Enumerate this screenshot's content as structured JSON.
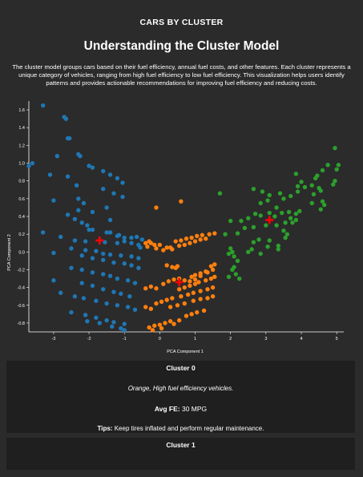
{
  "header": {
    "page_title": "CARS BY CLUSTER",
    "section_title": "Understanding the Cluster Model",
    "intro": "The cluster model groups cars based on their fuel efficiency, annual fuel costs, and other features. Each cluster represents a unique category of vehicles, ranging from high fuel efficiency to low fuel efficiency. This visualization helps users identify patterns and provides actionable recommendations for improving fuel efficiency and reducing costs."
  },
  "chart_data": {
    "type": "scatter",
    "title": "",
    "xlabel": "PCA Component 1",
    "ylabel": "PCA Component 2",
    "xlim": [
      -3.7,
      5.2
    ],
    "ylim": [
      -0.9,
      1.7
    ],
    "xticks": [
      -3,
      -2,
      -1,
      0,
      1,
      2,
      3,
      4,
      5
    ],
    "yticks": [
      -0.8,
      -0.6,
      -0.4,
      -0.2,
      0.0,
      0.2,
      0.4,
      0.6,
      0.8,
      1.0,
      1.2,
      1.4,
      1.6
    ],
    "grid": false,
    "series": [
      {
        "color": "#1f77b4",
        "points": [
          [
            -3.3,
            1.65
          ],
          [
            -2.7,
            1.52
          ],
          [
            -2.65,
            1.5
          ],
          [
            -2.6,
            1.28
          ],
          [
            -2.55,
            1.28
          ],
          [
            -3.7,
            0.97
          ],
          [
            -3.6,
            1.0
          ],
          [
            -2.9,
            1.08
          ],
          [
            -2.3,
            1.1
          ],
          [
            -2.25,
            1.08
          ],
          [
            -2.0,
            0.97
          ],
          [
            -1.9,
            0.95
          ],
          [
            -1.6,
            0.91
          ],
          [
            -1.4,
            0.87
          ],
          [
            -1.2,
            0.83
          ],
          [
            -1.05,
            0.78
          ],
          [
            -3.1,
            0.87
          ],
          [
            -2.6,
            0.85
          ],
          [
            -2.35,
            0.75
          ],
          [
            -1.6,
            0.71
          ],
          [
            -1.3,
            0.66
          ],
          [
            -1.05,
            0.62
          ],
          [
            -3.0,
            0.58
          ],
          [
            -2.3,
            0.6
          ],
          [
            -2.15,
            0.55
          ],
          [
            -1.5,
            0.5
          ],
          [
            -2.3,
            0.47
          ],
          [
            -1.9,
            0.45
          ],
          [
            -2.6,
            0.42
          ],
          [
            -1.4,
            0.36
          ],
          [
            -2.4,
            0.37
          ],
          [
            -2.2,
            0.33
          ],
          [
            -2.05,
            0.3
          ],
          [
            -1.9,
            0.25
          ],
          [
            -1.5,
            0.22
          ],
          [
            -1.2,
            0.18
          ],
          [
            -1.0,
            0.16
          ],
          [
            -0.65,
            0.17
          ],
          [
            -0.5,
            0.14
          ],
          [
            -3.3,
            0.22
          ],
          [
            -2.0,
            0.25
          ],
          [
            -1.4,
            0.22
          ],
          [
            -1.15,
            0.19
          ],
          [
            -0.8,
            0.16
          ],
          [
            -2.8,
            0.17
          ],
          [
            -2.4,
            0.13
          ],
          [
            -2.1,
            0.12
          ],
          [
            -1.55,
            0.11
          ],
          [
            -1.2,
            0.1
          ],
          [
            -1.0,
            0.12
          ],
          [
            -0.8,
            0.1
          ],
          [
            -0.6,
            0.08
          ],
          [
            -0.55,
            0.05
          ],
          [
            -2.5,
            0.04
          ],
          [
            -2.1,
            0.02
          ],
          [
            -1.8,
            0.01
          ],
          [
            -1.6,
            -0.02
          ],
          [
            -1.4,
            -0.03
          ],
          [
            -1.1,
            -0.04
          ],
          [
            -0.8,
            -0.05
          ],
          [
            -0.6,
            -0.07
          ],
          [
            -3.0,
            -0.01
          ],
          [
            -2.2,
            -0.04
          ],
          [
            -1.9,
            -0.07
          ],
          [
            -1.6,
            -0.09
          ],
          [
            -1.3,
            -0.12
          ],
          [
            -1.0,
            -0.13
          ],
          [
            -0.8,
            -0.15
          ],
          [
            -0.6,
            -0.18
          ],
          [
            -2.5,
            -0.18
          ],
          [
            -2.2,
            -0.2
          ],
          [
            -1.9,
            -0.23
          ],
          [
            -1.6,
            -0.25
          ],
          [
            -1.4,
            -0.27
          ],
          [
            -1.2,
            -0.3
          ],
          [
            -0.9,
            -0.32
          ],
          [
            -0.7,
            -0.35
          ],
          [
            -3.0,
            -0.32
          ],
          [
            -2.2,
            -0.35
          ],
          [
            -1.9,
            -0.38
          ],
          [
            -1.6,
            -0.42
          ],
          [
            -1.3,
            -0.45
          ],
          [
            -1.1,
            -0.47
          ],
          [
            -0.85,
            -0.5
          ],
          [
            -2.8,
            -0.46
          ],
          [
            -2.4,
            -0.5
          ],
          [
            -2.15,
            -0.52
          ],
          [
            -1.8,
            -0.55
          ],
          [
            -1.5,
            -0.58
          ],
          [
            -1.2,
            -0.6
          ],
          [
            -0.9,
            -0.62
          ],
          [
            -0.7,
            -0.65
          ],
          [
            -2.5,
            -0.68
          ],
          [
            -2.1,
            -0.71
          ],
          [
            -1.8,
            -0.74
          ],
          [
            -1.5,
            -0.77
          ],
          [
            -1.3,
            -0.79
          ],
          [
            -1.0,
            -0.81
          ],
          [
            -2.05,
            -0.78
          ],
          [
            -1.7,
            -0.8
          ],
          [
            -1.35,
            -0.84
          ],
          [
            -1.1,
            -0.86
          ],
          [
            -1.0,
            -0.88
          ]
        ]
      },
      {
        "color": "#ff7f0e",
        "points": [
          [
            -0.1,
            0.5
          ],
          [
            0.6,
            0.57
          ],
          [
            -0.4,
            0.1
          ],
          [
            -0.3,
            0.12
          ],
          [
            -0.25,
            0.1
          ],
          [
            -0.15,
            0.08
          ],
          [
            0.0,
            0.08
          ],
          [
            0.2,
            0.05
          ],
          [
            0.3,
            0.05
          ],
          [
            0.45,
            0.12
          ],
          [
            0.6,
            0.13
          ],
          [
            0.75,
            0.15
          ],
          [
            0.9,
            0.16
          ],
          [
            1.05,
            0.18
          ],
          [
            1.2,
            0.19
          ],
          [
            1.4,
            0.2
          ],
          [
            1.55,
            0.21
          ],
          [
            -0.35,
            0.06
          ],
          [
            -0.1,
            0.04
          ],
          [
            0.1,
            0.02
          ],
          [
            0.35,
            0.03
          ],
          [
            0.55,
            0.07
          ],
          [
            0.7,
            0.08
          ],
          [
            0.85,
            0.1
          ],
          [
            1.0,
            0.12
          ],
          [
            1.15,
            0.14
          ],
          [
            1.3,
            0.15
          ],
          [
            0.2,
            -0.15
          ],
          [
            0.35,
            -0.17
          ],
          [
            0.45,
            -0.18
          ],
          [
            0.5,
            -0.16
          ],
          [
            1.3,
            -0.22
          ],
          [
            1.45,
            -0.16
          ],
          [
            1.55,
            -0.14
          ],
          [
            1.0,
            -0.26
          ],
          [
            1.15,
            -0.24
          ],
          [
            0.9,
            -0.28
          ],
          [
            0.1,
            -0.36
          ],
          [
            0.25,
            -0.33
          ],
          [
            0.4,
            -0.31
          ],
          [
            0.55,
            -0.3
          ],
          [
            0.7,
            -0.32
          ],
          [
            0.85,
            -0.33
          ],
          [
            1.0,
            -0.31
          ],
          [
            1.15,
            -0.27
          ],
          [
            1.35,
            -0.23
          ],
          [
            1.5,
            -0.2
          ],
          [
            -0.4,
            -0.41
          ],
          [
            -0.25,
            -0.39
          ],
          [
            -0.1,
            -0.41
          ],
          [
            0.55,
            -0.42
          ],
          [
            0.7,
            -0.4
          ],
          [
            0.85,
            -0.38
          ],
          [
            1.0,
            -0.36
          ],
          [
            1.1,
            -0.34
          ],
          [
            1.3,
            -0.32
          ],
          [
            1.45,
            -0.3
          ],
          [
            1.55,
            -0.28
          ],
          [
            -0.1,
            -0.58
          ],
          [
            0.05,
            -0.56
          ],
          [
            0.2,
            -0.54
          ],
          [
            0.35,
            -0.52
          ],
          [
            0.6,
            -0.5
          ],
          [
            0.8,
            -0.48
          ],
          [
            0.95,
            -0.46
          ],
          [
            1.15,
            -0.44
          ],
          [
            1.35,
            -0.42
          ],
          [
            1.5,
            -0.4
          ],
          [
            -0.4,
            -0.62
          ],
          [
            -0.25,
            -0.64
          ],
          [
            0.3,
            -0.62
          ],
          [
            0.5,
            -0.6
          ],
          [
            0.7,
            -0.58
          ],
          [
            0.95,
            -0.55
          ],
          [
            1.15,
            -0.53
          ],
          [
            1.35,
            -0.52
          ],
          [
            1.5,
            -0.5
          ],
          [
            0.75,
            -0.72
          ],
          [
            0.9,
            -0.7
          ],
          [
            1.05,
            -0.68
          ],
          [
            1.25,
            -0.66
          ],
          [
            -0.3,
            -0.85
          ],
          [
            -0.15,
            -0.83
          ],
          [
            0.0,
            -0.82
          ],
          [
            0.15,
            -0.8
          ],
          [
            0.3,
            -0.78
          ],
          [
            0.4,
            -0.81
          ],
          [
            0.55,
            -0.77
          ],
          [
            -0.2,
            -0.88
          ],
          [
            0.05,
            -0.86
          ]
        ]
      },
      {
        "color": "#2ca02c",
        "points": [
          [
            1.7,
            0.66
          ],
          [
            2.3,
            0.35
          ],
          [
            2.5,
            0.38
          ],
          [
            2.7,
            0.43
          ],
          [
            2.85,
            0.55
          ],
          [
            3.05,
            0.58
          ],
          [
            2.85,
            0.41
          ],
          [
            3.1,
            0.44
          ],
          [
            3.3,
            0.5
          ],
          [
            3.5,
            0.6
          ],
          [
            3.7,
            0.63
          ],
          [
            3.9,
            0.68
          ],
          [
            4.1,
            0.73
          ],
          [
            4.3,
            0.75
          ],
          [
            4.5,
            0.72
          ],
          [
            4.55,
            0.69
          ],
          [
            4.6,
            0.57
          ],
          [
            4.65,
            0.53
          ],
          [
            4.55,
            0.48
          ],
          [
            3.9,
            0.74
          ],
          [
            4.0,
            0.79
          ],
          [
            4.4,
            0.83
          ],
          [
            4.9,
            0.76
          ],
          [
            4.95,
            0.8
          ],
          [
            5.0,
            0.93
          ],
          [
            5.05,
            0.98
          ],
          [
            4.95,
            1.17
          ],
          [
            4.75,
            0.98
          ],
          [
            4.6,
            0.92
          ],
          [
            4.45,
            0.86
          ],
          [
            3.85,
            0.88
          ],
          [
            3.4,
            0.66
          ],
          [
            3.1,
            0.64
          ],
          [
            2.9,
            0.68
          ],
          [
            2.65,
            0.71
          ],
          [
            3.25,
            0.4
          ],
          [
            3.45,
            0.44
          ],
          [
            3.65,
            0.45
          ],
          [
            3.85,
            0.43
          ],
          [
            3.95,
            0.46
          ],
          [
            3.7,
            0.38
          ],
          [
            3.55,
            0.33
          ],
          [
            3.3,
            0.3
          ],
          [
            3.0,
            0.3
          ],
          [
            2.65,
            0.28
          ],
          [
            2.4,
            0.27
          ],
          [
            2.2,
            0.21
          ],
          [
            2.0,
            0.35
          ],
          [
            1.85,
            0.2
          ],
          [
            2.0,
            0.04
          ],
          [
            2.05,
            0.0
          ],
          [
            1.95,
            -0.02
          ],
          [
            2.1,
            -0.05
          ],
          [
            2.2,
            -0.1
          ],
          [
            2.1,
            -0.17
          ],
          [
            2.05,
            -0.2
          ],
          [
            2.15,
            -0.25
          ],
          [
            1.95,
            -0.28
          ],
          [
            2.25,
            -0.3
          ],
          [
            2.65,
            0.11
          ],
          [
            2.8,
            0.14
          ],
          [
            3.1,
            0.13
          ],
          [
            3.35,
            0.07
          ],
          [
            3.6,
            0.2
          ],
          [
            3.55,
            0.16
          ],
          [
            2.6,
            0.03
          ],
          [
            2.5,
            0.0
          ],
          [
            2.85,
            -0.02
          ],
          [
            3.05,
            0.06
          ],
          [
            3.35,
            0.03
          ],
          [
            3.5,
            0.24
          ],
          [
            3.75,
            0.33
          ],
          [
            3.85,
            0.36
          ],
          [
            4.3,
            0.55
          ],
          [
            4.35,
            0.65
          ]
        ]
      },
      {
        "color": "#ff0000",
        "marker": "plus",
        "points": [
          [
            -1.7,
            0.13
          ],
          [
            0.55,
            -0.34
          ],
          [
            3.1,
            0.36
          ]
        ]
      }
    ]
  },
  "cards": [
    {
      "title": "Cluster 0",
      "description": "Orange, High fuel efficiency vehicles.",
      "avg_fe_label": "Avg FE:",
      "avg_fe_value": "30 MPG",
      "tips_label": "Tips:",
      "tips_text": "Keep tires inflated and perform regular maintenance."
    },
    {
      "title": "Cluster 1"
    }
  ]
}
